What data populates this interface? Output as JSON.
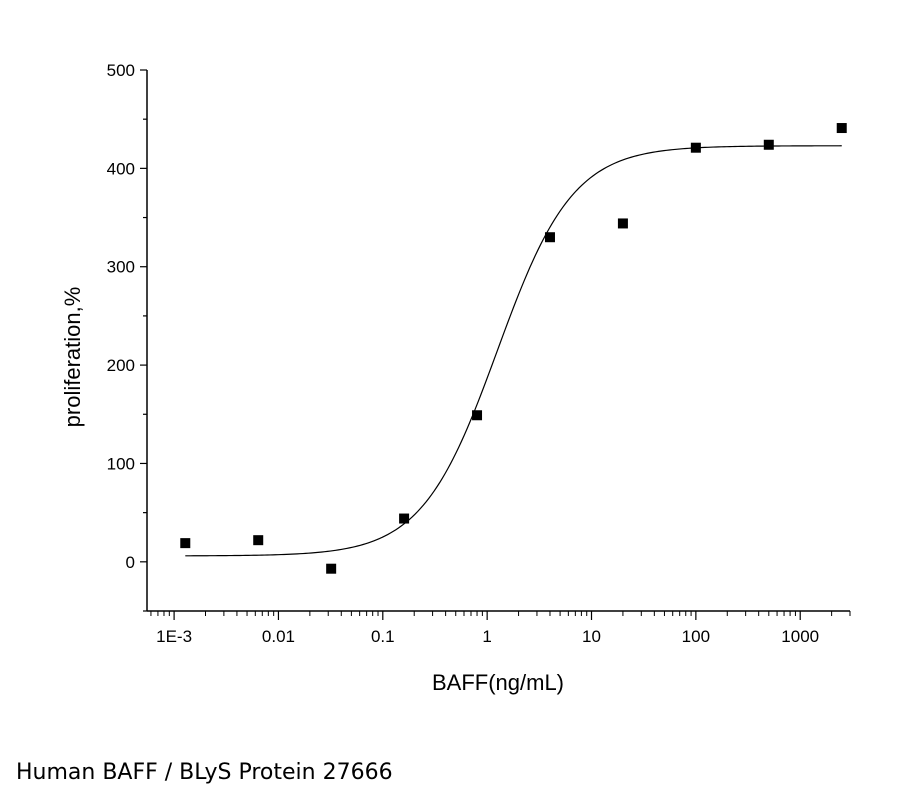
{
  "caption": "Human BAFF / BLyS Protein 27666",
  "chart_data": {
    "type": "scatter",
    "xlabel": "BAFF(ng/mL)",
    "ylabel": "proliferation,%",
    "xscale": "log",
    "xlim": [
      0.00055,
      3000
    ],
    "ylim": [
      -50,
      500
    ],
    "yticks": [
      0,
      100,
      200,
      300,
      400,
      500
    ],
    "xticks": [
      0.001,
      0.01,
      0.1,
      1,
      10,
      100,
      1000
    ],
    "xtick_labels": [
      "1E-3",
      "0.01",
      "0.1",
      "1",
      "10",
      "100",
      "1000"
    ],
    "grid": false,
    "legend": "none",
    "points": [
      {
        "x": 0.00128,
        "y": 19
      },
      {
        "x": 0.0064,
        "y": 22
      },
      {
        "x": 0.032,
        "y": -7
      },
      {
        "x": 0.16,
        "y": 44
      },
      {
        "x": 0.8,
        "y": 149
      },
      {
        "x": 4,
        "y": 330
      },
      {
        "x": 20,
        "y": 344
      },
      {
        "x": 100,
        "y": 421
      },
      {
        "x": 500,
        "y": 424
      },
      {
        "x": 2500,
        "y": 441
      }
    ],
    "fit": {
      "model": "4PL",
      "bottom": 6,
      "top": 423,
      "ec50": 1.25,
      "hill": 1.2,
      "x_range": [
        0.00128,
        2500
      ]
    }
  }
}
